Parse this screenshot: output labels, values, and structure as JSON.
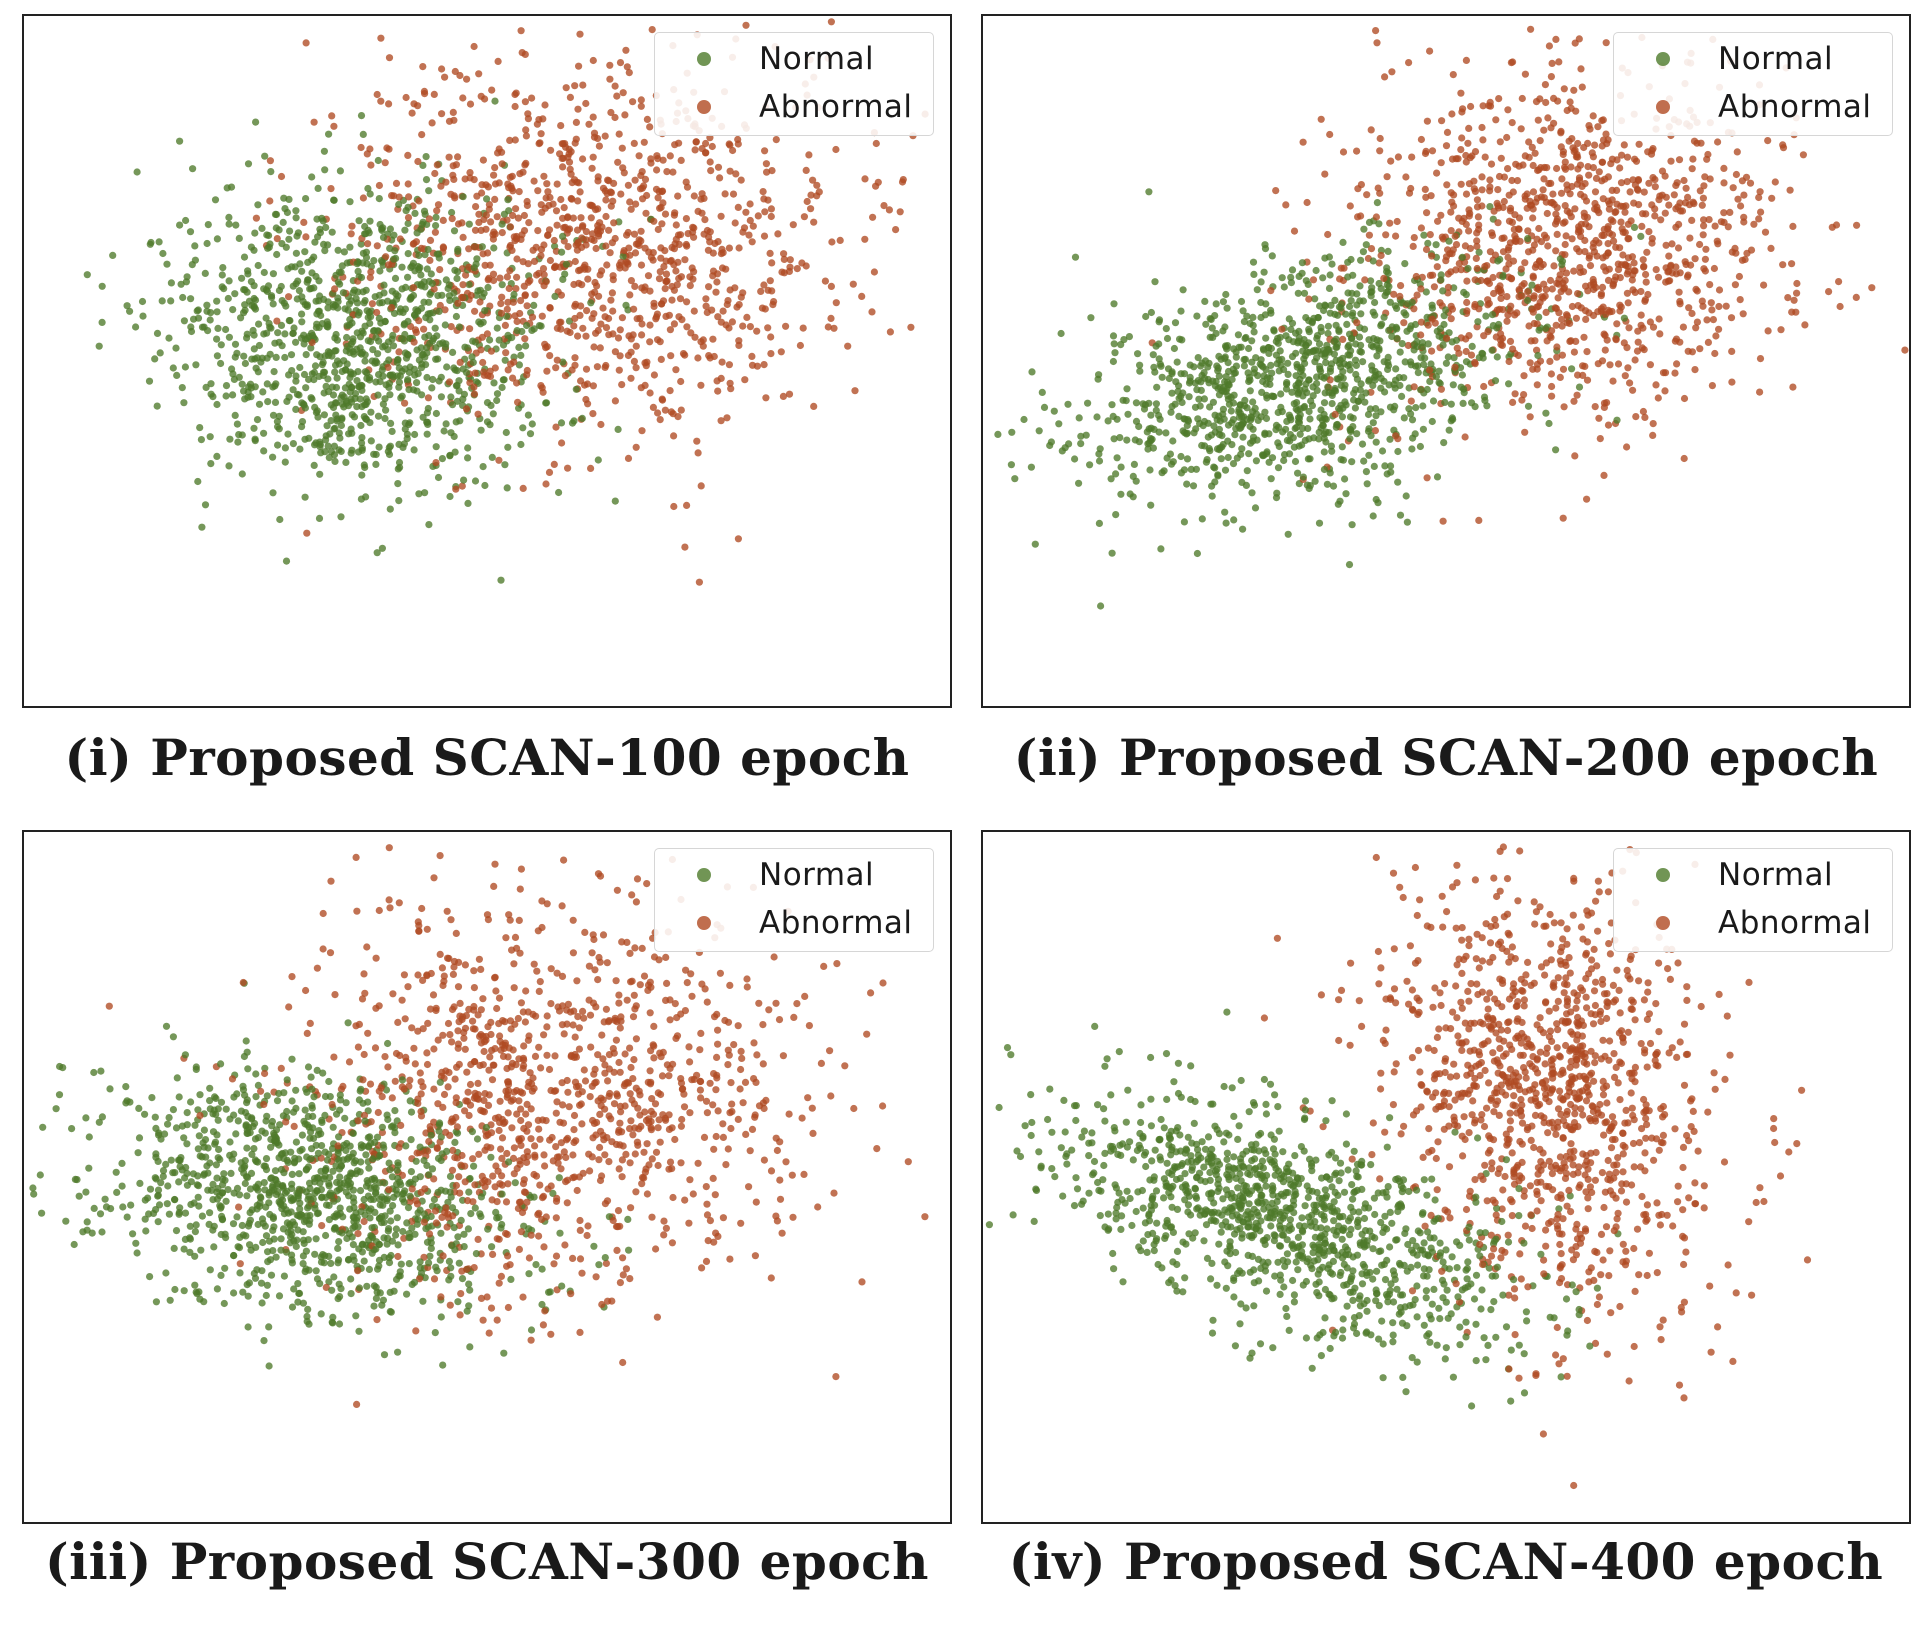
{
  "colors": {
    "normal": "#4e7a2a",
    "abnormal": "#b04a22"
  },
  "chart_data": [
    {
      "type": "scatter",
      "title": "(i) Proposed SCAN-100 epoch",
      "xlabel": "",
      "ylabel": "",
      "xlim": [
        -4.5,
        4.5
      ],
      "ylim": [
        -4.0,
        3.5
      ],
      "grid": false,
      "legend_position": "top-right",
      "series": [
        {
          "name": "Normal",
          "cluster": {
            "cx": -1.2,
            "cy": 0.0,
            "sx": 0.95,
            "sy": 0.85,
            "n": 1100,
            "rot": 0.0
          }
        },
        {
          "name": "Abnormal",
          "cluster": {
            "cx": 1.1,
            "cy": 1.0,
            "sx": 1.25,
            "sy": 1.0,
            "n": 1100,
            "rot": 0.0
          }
        }
      ]
    },
    {
      "type": "scatter",
      "title": "(ii) Proposed SCAN-200 epoch",
      "xlabel": "",
      "ylabel": "",
      "xlim": [
        -4.5,
        4.5
      ],
      "ylim": [
        -4.0,
        3.5
      ],
      "grid": false,
      "legend_position": "top-right",
      "series": [
        {
          "name": "Normal",
          "cluster": {
            "cx": -1.4,
            "cy": -0.4,
            "sx": 1.1,
            "sy": 0.6,
            "n": 1100,
            "rot": 0.35
          }
        },
        {
          "name": "Abnormal",
          "cluster": {
            "cx": 1.2,
            "cy": 1.0,
            "sx": 1.05,
            "sy": 0.95,
            "n": 1100,
            "rot": 0.1
          }
        }
      ]
    },
    {
      "type": "scatter",
      "title": "(iii) Proposed SCAN-300 epoch",
      "xlabel": "",
      "ylabel": "",
      "xlim": [
        -4.5,
        4.5
      ],
      "ylim": [
        -4.0,
        3.5
      ],
      "grid": false,
      "legend_position": "top-right",
      "series": [
        {
          "name": "Normal",
          "cluster": {
            "cx": -1.7,
            "cy": -0.4,
            "sx": 1.0,
            "sy": 0.6,
            "n": 1100,
            "rot": -0.25
          }
        },
        {
          "name": "Abnormal",
          "cluster": {
            "cx": 0.6,
            "cy": 0.6,
            "sx": 1.2,
            "sy": 1.1,
            "n": 1100,
            "rot": 0.0
          }
        }
      ]
    },
    {
      "type": "scatter",
      "title": "(iv) Proposed SCAN-400 epoch",
      "xlabel": "",
      "ylabel": "",
      "xlim": [
        -4.5,
        4.5
      ],
      "ylim": [
        -4.0,
        3.5
      ],
      "grid": false,
      "legend_position": "top-right",
      "series": [
        {
          "name": "Normal",
          "cluster": {
            "cx": -1.6,
            "cy": -0.7,
            "sx": 1.2,
            "sy": 0.5,
            "n": 1100,
            "rot": -0.45
          }
        },
        {
          "name": "Abnormal",
          "cluster": {
            "cx": 1.0,
            "cy": 0.7,
            "sx": 0.8,
            "sy": 1.2,
            "n": 1100,
            "rot": 0.3
          }
        }
      ]
    }
  ]
}
